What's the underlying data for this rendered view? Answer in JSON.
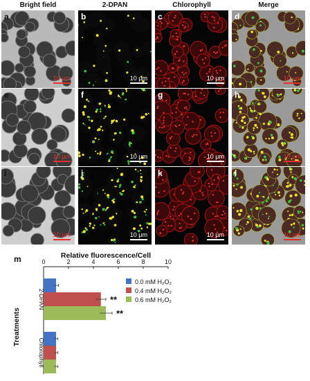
{
  "columns": [
    "Bright field",
    "2-DPAN",
    "Chlorophyll",
    "Merge"
  ],
  "panels": [
    [
      "a",
      "b",
      "c",
      "d"
    ],
    [
      "e",
      "f",
      "g",
      "h"
    ],
    [
      "i",
      "j",
      "k",
      "l"
    ]
  ],
  "scale_bar_label": "10 μm",
  "chart_data": {
    "panel_label": "m",
    "type": "bar",
    "orientation": "horizontal",
    "title": "Relative fluorescence/Cell",
    "ylabel": "Treatments",
    "xlim": [
      0,
      10
    ],
    "xticks": [
      "0",
      "2",
      "4",
      "6",
      "8",
      "10"
    ],
    "categories": [
      "2-DPAN",
      "Chlorophyll"
    ],
    "series": [
      {
        "name": "0.0 mM H₂O₂",
        "color": "#4472c4",
        "values": [
          1.0,
          1.0
        ],
        "errors": [
          0.2,
          0.15
        ]
      },
      {
        "name": "0.4 mM H₂O₂",
        "color": "#c0504d",
        "values": [
          4.6,
          1.0
        ],
        "errors": [
          0.4,
          0.15
        ]
      },
      {
        "name": "0.6 mM H₂O₂",
        "color": "#9bbb59",
        "values": [
          5.0,
          1.0
        ],
        "errors": [
          0.5,
          0.15
        ]
      }
    ],
    "annotations": [
      {
        "category": "2-DPAN",
        "series": 1,
        "text": "**"
      },
      {
        "category": "2-DPAN",
        "series": 2,
        "text": "**"
      }
    ],
    "legend_position": "right"
  }
}
